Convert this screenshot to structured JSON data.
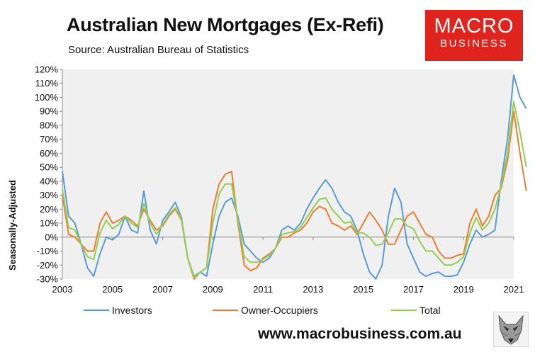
{
  "header": {
    "title": "Australian New Mortgages (Ex-Refi)",
    "subtitle": "Source: Australian Bureau of Statistics"
  },
  "logo": {
    "line1": "MACRO",
    "line2": "BUSINESS",
    "color": "#e0231c"
  },
  "footer": {
    "url": "www.macrobusiness.com.au",
    "mascot_icon": "fox-icon"
  },
  "chart_data": {
    "type": "line",
    "title": "Australian New Mortgages (Ex-Refi)",
    "ylabel": "Seasonally-Adjusted",
    "xlabel": "",
    "xlim": [
      2003,
      2021
    ],
    "ylim": [
      -30,
      120
    ],
    "x_ticks": [
      "2003",
      "2005",
      "2007",
      "2009",
      "2011",
      "2013",
      "2015",
      "2017",
      "2019",
      "2021"
    ],
    "y_ticks": [
      "120%",
      "110%",
      "100%",
      "90%",
      "80%",
      "70%",
      "60%",
      "50%",
      "40%",
      "30%",
      "20%",
      "10%",
      "0%",
      "-10%",
      "-20%",
      "-30%"
    ],
    "grid": false,
    "plot_background": "#f0f0f0",
    "legend": "bottom",
    "series": [
      {
        "name": "Investors",
        "color": "#5b9bd5",
        "points": [
          [
            2003.0,
            47
          ],
          [
            2003.25,
            15
          ],
          [
            2003.5,
            10
          ],
          [
            2003.75,
            -5
          ],
          [
            2004.0,
            -22
          ],
          [
            2004.25,
            -28
          ],
          [
            2004.5,
            -12
          ],
          [
            2004.75,
            0
          ],
          [
            2005.0,
            -2
          ],
          [
            2005.25,
            2
          ],
          [
            2005.5,
            15
          ],
          [
            2005.75,
            5
          ],
          [
            2006.0,
            3
          ],
          [
            2006.25,
            33
          ],
          [
            2006.5,
            5
          ],
          [
            2006.75,
            -5
          ],
          [
            2007.0,
            12
          ],
          [
            2007.25,
            18
          ],
          [
            2007.5,
            25
          ],
          [
            2007.75,
            14
          ],
          [
            2008.0,
            -15
          ],
          [
            2008.25,
            -28
          ],
          [
            2008.5,
            -25
          ],
          [
            2008.75,
            -28
          ],
          [
            2009.0,
            -5
          ],
          [
            2009.25,
            15
          ],
          [
            2009.5,
            25
          ],
          [
            2009.75,
            28
          ],
          [
            2010.0,
            15
          ],
          [
            2010.25,
            -5
          ],
          [
            2010.5,
            -10
          ],
          [
            2010.75,
            -15
          ],
          [
            2011.0,
            -18
          ],
          [
            2011.25,
            -15
          ],
          [
            2011.5,
            -8
          ],
          [
            2011.75,
            5
          ],
          [
            2012.0,
            8
          ],
          [
            2012.25,
            5
          ],
          [
            2012.5,
            10
          ],
          [
            2012.75,
            20
          ],
          [
            2013.0,
            28
          ],
          [
            2013.25,
            35
          ],
          [
            2013.5,
            41
          ],
          [
            2013.75,
            35
          ],
          [
            2014.0,
            25
          ],
          [
            2014.25,
            18
          ],
          [
            2014.5,
            15
          ],
          [
            2014.75,
            5
          ],
          [
            2015.0,
            -12
          ],
          [
            2015.25,
            -25
          ],
          [
            2015.5,
            -30
          ],
          [
            2015.75,
            -20
          ],
          [
            2016.0,
            15
          ],
          [
            2016.25,
            35
          ],
          [
            2016.5,
            25
          ],
          [
            2016.75,
            -5
          ],
          [
            2017.0,
            -15
          ],
          [
            2017.25,
            -25
          ],
          [
            2017.5,
            -28
          ],
          [
            2017.75,
            -26
          ],
          [
            2018.0,
            -25
          ],
          [
            2018.25,
            -28
          ],
          [
            2018.5,
            -28
          ],
          [
            2018.75,
            -27
          ],
          [
            2019.0,
            -18
          ],
          [
            2019.25,
            -5
          ],
          [
            2019.5,
            5
          ],
          [
            2019.75,
            0
          ],
          [
            2020.0,
            2
          ],
          [
            2020.25,
            5
          ],
          [
            2020.5,
            40
          ],
          [
            2020.75,
            70
          ],
          [
            2021.0,
            116
          ],
          [
            2021.25,
            100
          ],
          [
            2021.5,
            92
          ]
        ]
      },
      {
        "name": "Owner-Occupiers",
        "color": "#ed7d31",
        "points": [
          [
            2003.0,
            30
          ],
          [
            2003.25,
            2
          ],
          [
            2003.5,
            0
          ],
          [
            2003.75,
            -5
          ],
          [
            2004.0,
            -10
          ],
          [
            2004.25,
            -10
          ],
          [
            2004.5,
            10
          ],
          [
            2004.75,
            18
          ],
          [
            2005.0,
            10
          ],
          [
            2005.25,
            12
          ],
          [
            2005.5,
            15
          ],
          [
            2005.75,
            12
          ],
          [
            2006.0,
            8
          ],
          [
            2006.25,
            20
          ],
          [
            2006.5,
            12
          ],
          [
            2006.75,
            5
          ],
          [
            2007.0,
            8
          ],
          [
            2007.25,
            15
          ],
          [
            2007.5,
            20
          ],
          [
            2007.75,
            12
          ],
          [
            2008.0,
            -15
          ],
          [
            2008.25,
            -30
          ],
          [
            2008.5,
            -25
          ],
          [
            2008.75,
            -22
          ],
          [
            2009.0,
            20
          ],
          [
            2009.25,
            38
          ],
          [
            2009.5,
            45
          ],
          [
            2009.75,
            47
          ],
          [
            2010.0,
            10
          ],
          [
            2010.25,
            -20
          ],
          [
            2010.5,
            -24
          ],
          [
            2010.75,
            -22
          ],
          [
            2011.0,
            -15
          ],
          [
            2011.25,
            -12
          ],
          [
            2011.5,
            -8
          ],
          [
            2011.75,
            0
          ],
          [
            2012.0,
            0
          ],
          [
            2012.25,
            3
          ],
          [
            2012.5,
            5
          ],
          [
            2012.75,
            10
          ],
          [
            2013.0,
            18
          ],
          [
            2013.25,
            22
          ],
          [
            2013.5,
            20
          ],
          [
            2013.75,
            10
          ],
          [
            2014.0,
            8
          ],
          [
            2014.25,
            5
          ],
          [
            2014.5,
            8
          ],
          [
            2014.75,
            2
          ],
          [
            2015.0,
            10
          ],
          [
            2015.25,
            18
          ],
          [
            2015.5,
            12
          ],
          [
            2015.75,
            5
          ],
          [
            2016.0,
            -5
          ],
          [
            2016.25,
            -5
          ],
          [
            2016.5,
            5
          ],
          [
            2016.75,
            15
          ],
          [
            2017.0,
            18
          ],
          [
            2017.25,
            10
          ],
          [
            2017.5,
            2
          ],
          [
            2017.75,
            0
          ],
          [
            2018.0,
            -10
          ],
          [
            2018.25,
            -15
          ],
          [
            2018.5,
            -15
          ],
          [
            2018.75,
            -13
          ],
          [
            2019.0,
            -12
          ],
          [
            2019.25,
            10
          ],
          [
            2019.5,
            20
          ],
          [
            2019.75,
            8
          ],
          [
            2020.0,
            15
          ],
          [
            2020.25,
            30
          ],
          [
            2020.5,
            35
          ],
          [
            2020.75,
            55
          ],
          [
            2021.0,
            90
          ],
          [
            2021.25,
            60
          ],
          [
            2021.5,
            33
          ]
        ]
      },
      {
        "name": "Total",
        "color": "#92d050",
        "points": [
          [
            2003.0,
            34
          ],
          [
            2003.25,
            7
          ],
          [
            2003.5,
            5
          ],
          [
            2003.75,
            -5
          ],
          [
            2004.0,
            -14
          ],
          [
            2004.25,
            -16
          ],
          [
            2004.5,
            3
          ],
          [
            2004.75,
            12
          ],
          [
            2005.0,
            6
          ],
          [
            2005.25,
            9
          ],
          [
            2005.5,
            15
          ],
          [
            2005.75,
            10
          ],
          [
            2006.0,
            7
          ],
          [
            2006.25,
            24
          ],
          [
            2006.5,
            10
          ],
          [
            2006.75,
            2
          ],
          [
            2007.0,
            9
          ],
          [
            2007.25,
            16
          ],
          [
            2007.5,
            21
          ],
          [
            2007.75,
            13
          ],
          [
            2008.0,
            -15
          ],
          [
            2008.25,
            -29
          ],
          [
            2008.5,
            -25
          ],
          [
            2008.75,
            -22
          ],
          [
            2009.0,
            10
          ],
          [
            2009.25,
            31
          ],
          [
            2009.5,
            38
          ],
          [
            2009.75,
            38
          ],
          [
            2010.0,
            12
          ],
          [
            2010.25,
            -14
          ],
          [
            2010.5,
            -18
          ],
          [
            2010.75,
            -18
          ],
          [
            2011.0,
            -16
          ],
          [
            2011.25,
            -13
          ],
          [
            2011.5,
            -8
          ],
          [
            2011.75,
            2
          ],
          [
            2012.0,
            3
          ],
          [
            2012.25,
            4
          ],
          [
            2012.5,
            7
          ],
          [
            2012.75,
            14
          ],
          [
            2013.0,
            21
          ],
          [
            2013.25,
            27
          ],
          [
            2013.5,
            28
          ],
          [
            2013.75,
            20
          ],
          [
            2014.0,
            15
          ],
          [
            2014.25,
            10
          ],
          [
            2014.5,
            11
          ],
          [
            2014.75,
            3
          ],
          [
            2015.0,
            3
          ],
          [
            2015.25,
            0
          ],
          [
            2015.5,
            -6
          ],
          [
            2015.75,
            -5
          ],
          [
            2016.0,
            3
          ],
          [
            2016.25,
            13
          ],
          [
            2016.5,
            13
          ],
          [
            2016.75,
            8
          ],
          [
            2017.0,
            6
          ],
          [
            2017.25,
            -3
          ],
          [
            2017.5,
            -10
          ],
          [
            2017.75,
            -10
          ],
          [
            2018.0,
            -15
          ],
          [
            2018.25,
            -20
          ],
          [
            2018.5,
            -20
          ],
          [
            2018.75,
            -18
          ],
          [
            2019.0,
            -14
          ],
          [
            2019.25,
            3
          ],
          [
            2019.5,
            14
          ],
          [
            2019.75,
            5
          ],
          [
            2020.0,
            10
          ],
          [
            2020.25,
            20
          ],
          [
            2020.5,
            37
          ],
          [
            2020.75,
            60
          ],
          [
            2021.0,
            97
          ],
          [
            2021.25,
            75
          ],
          [
            2021.5,
            50
          ]
        ]
      }
    ]
  }
}
